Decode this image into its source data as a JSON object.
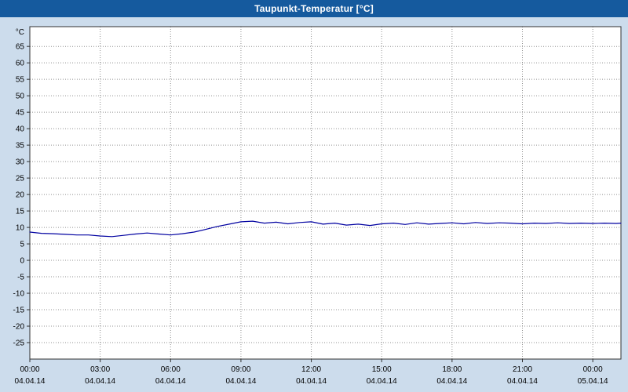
{
  "window": {
    "title": "Taupunkt-Temperatur [°C]"
  },
  "chart_data": {
    "type": "line",
    "title": "Taupunkt-Temperatur [°C]",
    "ylabel": "°C",
    "xlabel": "",
    "ylim": [
      -30,
      71
    ],
    "xlim": [
      0,
      25.2
    ],
    "grid": true,
    "legend": "none",
    "y_ticks": [
      65,
      60,
      55,
      50,
      45,
      40,
      35,
      30,
      25,
      20,
      15,
      10,
      5,
      0,
      -5,
      -10,
      -15,
      -20,
      -25
    ],
    "x_ticks": [
      {
        "h": 0,
        "time": "00:00",
        "date": "04.04.14"
      },
      {
        "h": 3,
        "time": "03:00",
        "date": "04.04.14"
      },
      {
        "h": 6,
        "time": "06:00",
        "date": "04.04.14"
      },
      {
        "h": 9,
        "time": "09:00",
        "date": "04.04.14"
      },
      {
        "h": 12,
        "time": "12:00",
        "date": "04.04.14"
      },
      {
        "h": 15,
        "time": "15:00",
        "date": "04.04.14"
      },
      {
        "h": 18,
        "time": "18:00",
        "date": "04.04.14"
      },
      {
        "h": 21,
        "time": "21:00",
        "date": "04.04.14"
      },
      {
        "h": 24,
        "time": "00:00",
        "date": "05.04.14"
      }
    ],
    "series": [
      {
        "name": "Taupunkt-Temperatur",
        "color": "#0000a0",
        "points": [
          [
            0,
            8.6
          ],
          [
            0.5,
            8.2
          ],
          [
            1,
            8.1
          ],
          [
            1.5,
            7.9
          ],
          [
            2,
            7.7
          ],
          [
            2.5,
            7.7
          ],
          [
            3,
            7.4
          ],
          [
            3.5,
            7.2
          ],
          [
            4,
            7.6
          ],
          [
            4.5,
            8.0
          ],
          [
            5,
            8.3
          ],
          [
            5.5,
            8.0
          ],
          [
            6,
            7.7
          ],
          [
            6.5,
            8.1
          ],
          [
            7,
            8.6
          ],
          [
            7.5,
            9.4
          ],
          [
            8,
            10.3
          ],
          [
            8.5,
            11.0
          ],
          [
            9,
            11.7
          ],
          [
            9.5,
            11.9
          ],
          [
            10,
            11.3
          ],
          [
            10.5,
            11.6
          ],
          [
            11,
            11.1
          ],
          [
            11.5,
            11.5
          ],
          [
            12,
            11.7
          ],
          [
            12.5,
            11.0
          ],
          [
            13,
            11.3
          ],
          [
            13.5,
            10.7
          ],
          [
            14,
            11.0
          ],
          [
            14.5,
            10.6
          ],
          [
            15,
            11.1
          ],
          [
            15.5,
            11.3
          ],
          [
            16,
            10.9
          ],
          [
            16.5,
            11.4
          ],
          [
            17,
            11.0
          ],
          [
            17.5,
            11.2
          ],
          [
            18,
            11.4
          ],
          [
            18.5,
            11.1
          ],
          [
            19,
            11.5
          ],
          [
            19.5,
            11.2
          ],
          [
            20,
            11.4
          ],
          [
            20.5,
            11.3
          ],
          [
            21,
            11.1
          ],
          [
            21.5,
            11.3
          ],
          [
            22,
            11.2
          ],
          [
            22.5,
            11.4
          ],
          [
            23,
            11.2
          ],
          [
            23.5,
            11.3
          ],
          [
            24,
            11.2
          ],
          [
            24.5,
            11.3
          ],
          [
            25,
            11.2
          ],
          [
            25.2,
            11.3
          ]
        ]
      }
    ],
    "colors": {
      "titlebar": "#155a9e",
      "title_text": "#ffffff",
      "background": "#ccdcec",
      "plot_bg": "#ffffff",
      "grid": "#909090",
      "axis": "#303030"
    }
  }
}
